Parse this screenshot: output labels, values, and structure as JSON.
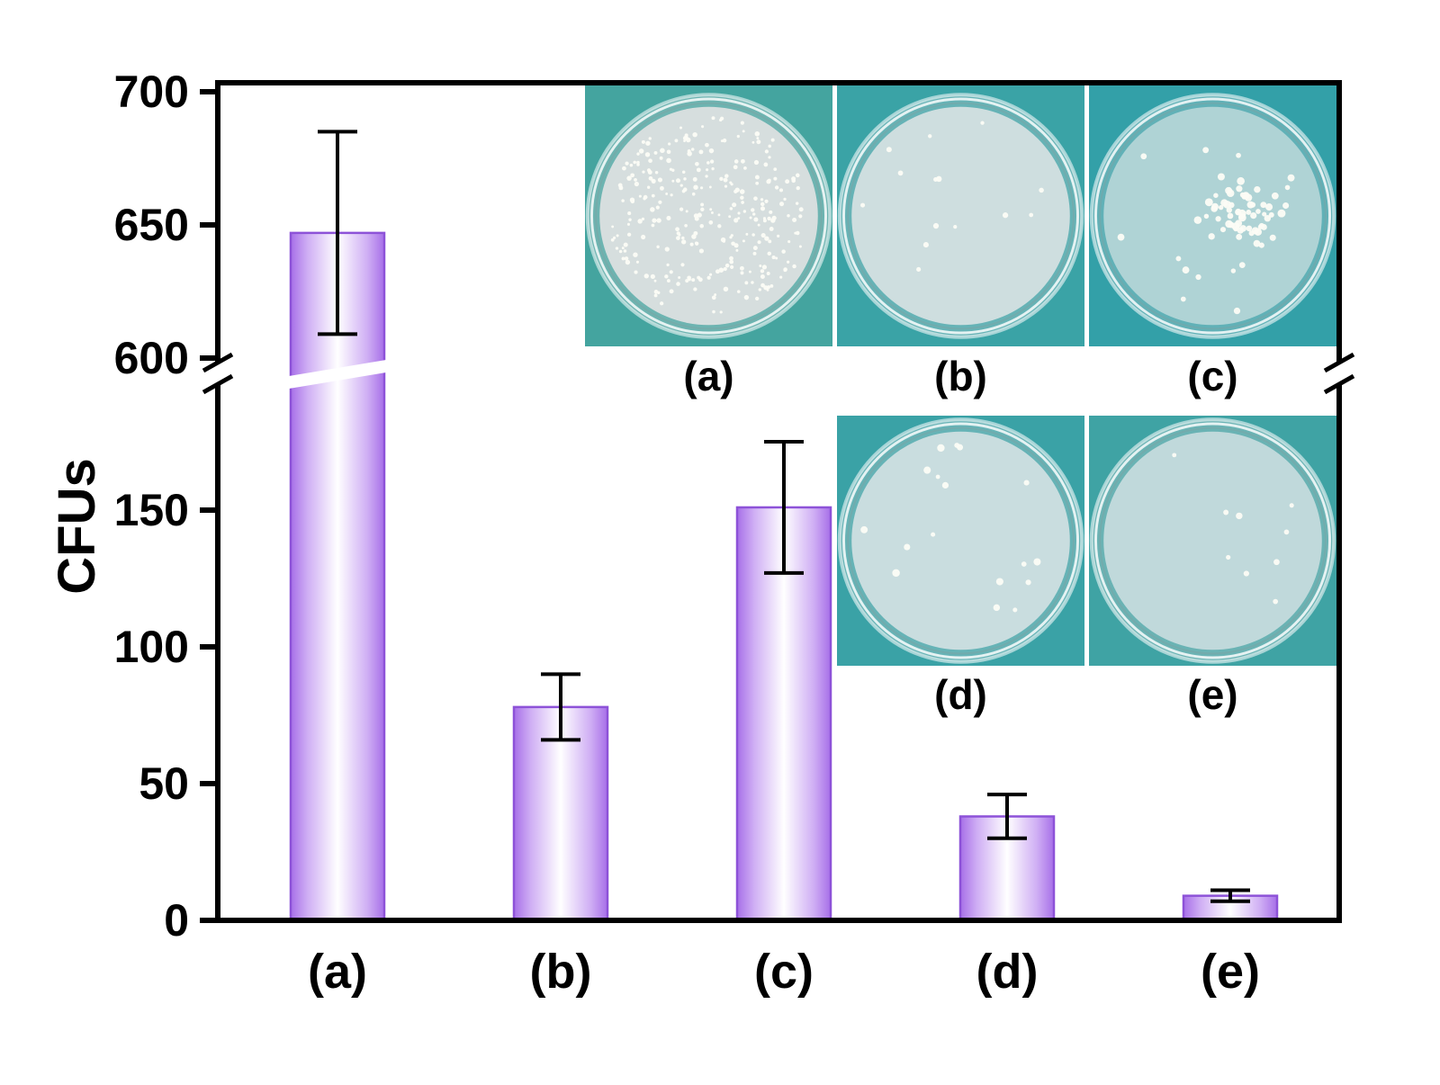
{
  "chart_data": {
    "type": "bar",
    "title": "",
    "xlabel": "",
    "ylabel": "CFUs",
    "categories": [
      "(a)",
      "(b)",
      "(c)",
      "(d)",
      "(e)"
    ],
    "values": [
      647,
      78,
      151,
      38,
      9
    ],
    "errors": [
      38,
      12,
      24,
      8,
      2
    ],
    "y_axis": {
      "break": true,
      "lower_ticks": [
        0,
        50,
        100,
        150
      ],
      "upper_ticks": [
        600,
        650,
        700
      ],
      "lower_range": [
        0,
        195
      ],
      "upper_range": [
        600,
        700
      ]
    },
    "grid": false,
    "legend": false,
    "bar_fill_edge": "#a76fe8",
    "bar_fill_light": "#cfaef4",
    "bar_fill_mid": "#ffffff",
    "bar_stroke": "#8d52d8",
    "axis_color": "#000000"
  },
  "insets": {
    "top": [
      {
        "label": "(a)",
        "bg": "#44a49f",
        "agar": "rgba(223,226,226,0.92)",
        "colonies": 300,
        "dot": [
          1.4,
          2.8
        ],
        "cluster": 0
      },
      {
        "label": "(b)",
        "bg": "#3aa3a6",
        "agar": "rgba(221,228,229,0.88)",
        "colonies": 14,
        "dot": [
          2.0,
          3.4
        ],
        "cluster": 0
      },
      {
        "label": "(c)",
        "bg": "#33a0a8",
        "agar": "rgba(226,233,233,0.60)",
        "colonies": 75,
        "dot": [
          2.6,
          4.6
        ],
        "cluster": 0.8
      }
    ],
    "bottom": [
      {
        "label": "(d)",
        "bg": "#3aa2a6",
        "agar": "rgba(219,228,230,0.85)",
        "colonies": 17,
        "dot": [
          2.4,
          4.4
        ],
        "cluster": 0
      },
      {
        "label": "(e)",
        "bg": "#3fa3a4",
        "agar": "rgba(214,226,229,0.80)",
        "colonies": 9,
        "dot": [
          2.4,
          4.0
        ],
        "cluster": 0
      }
    ]
  }
}
